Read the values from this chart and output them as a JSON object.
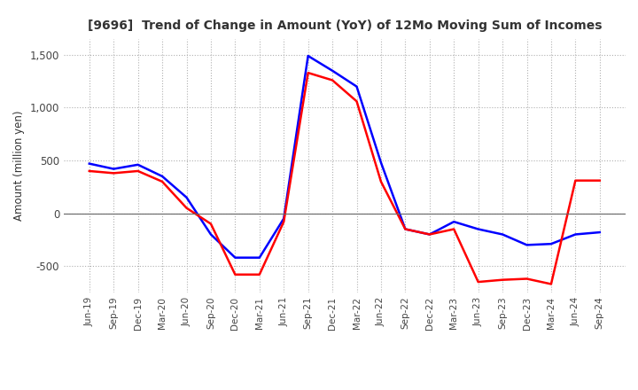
{
  "title": "[9696]  Trend of Change in Amount (YoY) of 12Mo Moving Sum of Incomes",
  "ylabel": "Amount (million yen)",
  "x_labels": [
    "Jun-19",
    "Sep-19",
    "Dec-19",
    "Mar-20",
    "Jun-20",
    "Sep-20",
    "Dec-20",
    "Mar-21",
    "Jun-21",
    "Sep-21",
    "Dec-21",
    "Mar-22",
    "Jun-22",
    "Sep-22",
    "Dec-22",
    "Mar-23",
    "Jun-23",
    "Sep-23",
    "Dec-23",
    "Mar-24",
    "Jun-24",
    "Sep-24"
  ],
  "ordinary_income": [
    470,
    420,
    460,
    350,
    150,
    -200,
    -420,
    -420,
    -50,
    1490,
    1350,
    1200,
    480,
    -150,
    -200,
    -80,
    -150,
    -200,
    -300,
    -290,
    -200,
    -180
  ],
  "net_income": [
    400,
    380,
    400,
    300,
    50,
    -100,
    -580,
    -580,
    -80,
    1330,
    1260,
    1060,
    300,
    -150,
    -200,
    -150,
    -650,
    -630,
    -620,
    -670,
    310,
    310
  ],
  "ordinary_color": "#0000ff",
  "net_color": "#ff0000",
  "ylim": [
    -750,
    1650
  ],
  "yticks": [
    -500,
    0,
    500,
    1000,
    1500
  ],
  "background_color": "#ffffff",
  "grid_color": "#b0b0b0"
}
